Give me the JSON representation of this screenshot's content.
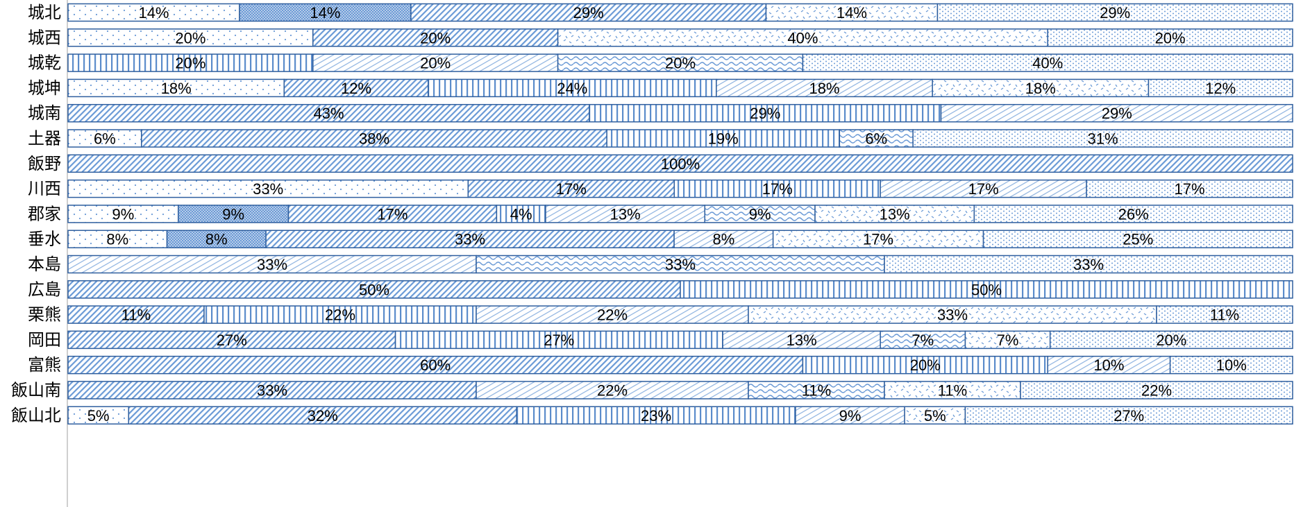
{
  "chart_data": {
    "type": "bar",
    "orientation": "horizontal",
    "stacked": "percent",
    "categories": [
      "城北",
      "城西",
      "城乾",
      "城坤",
      "城南",
      "土器",
      "飯野",
      "川西",
      "郡家",
      "垂水",
      "本島",
      "広島",
      "栗熊",
      "岡田",
      "富熊",
      "飯山南",
      "飯山北"
    ],
    "series": [
      {
        "pattern": "sparse-dots",
        "values": [
          14,
          20,
          0,
          18,
          0,
          6,
          0,
          33,
          9,
          8,
          0,
          0,
          0,
          0,
          0,
          0,
          5
        ]
      },
      {
        "pattern": "crosshatch",
        "values": [
          14,
          0,
          0,
          0,
          0,
          0,
          0,
          0,
          9,
          8,
          0,
          0,
          0,
          0,
          0,
          0,
          0
        ]
      },
      {
        "pattern": "diagonal",
        "values": [
          29,
          20,
          0,
          12,
          43,
          38,
          100,
          17,
          17,
          33,
          0,
          50,
          11,
          27,
          60,
          33,
          32
        ]
      },
      {
        "pattern": "vertical",
        "values": [
          0,
          0,
          20,
          24,
          29,
          19,
          0,
          17,
          4,
          0,
          0,
          50,
          22,
          27,
          20,
          0,
          23
        ]
      },
      {
        "pattern": "light-diag",
        "values": [
          0,
          0,
          20,
          18,
          29,
          0,
          0,
          17,
          13,
          8,
          33,
          0,
          22,
          13,
          10,
          22,
          9
        ]
      },
      {
        "pattern": "wave",
        "values": [
          0,
          0,
          20,
          0,
          0,
          6,
          0,
          0,
          9,
          0,
          33,
          0,
          0,
          7,
          0,
          11,
          0
        ]
      },
      {
        "pattern": "confetti",
        "values": [
          14,
          40,
          0,
          18,
          0,
          0,
          0,
          0,
          13,
          17,
          0,
          0,
          33,
          7,
          0,
          11,
          5
        ]
      },
      {
        "pattern": "dense-dots",
        "values": [
          29,
          20,
          40,
          12,
          0,
          31,
          0,
          17,
          26,
          25,
          33,
          0,
          11,
          20,
          10,
          22,
          27
        ]
      }
    ],
    "value_suffix": "%",
    "xlim": [
      0,
      100
    ],
    "grid": false,
    "colors": {
      "stroke": "#2E5E9E",
      "pattern": "#6A9AD6",
      "fill_alt": "#B8CCE8",
      "text": "#000000"
    }
  }
}
